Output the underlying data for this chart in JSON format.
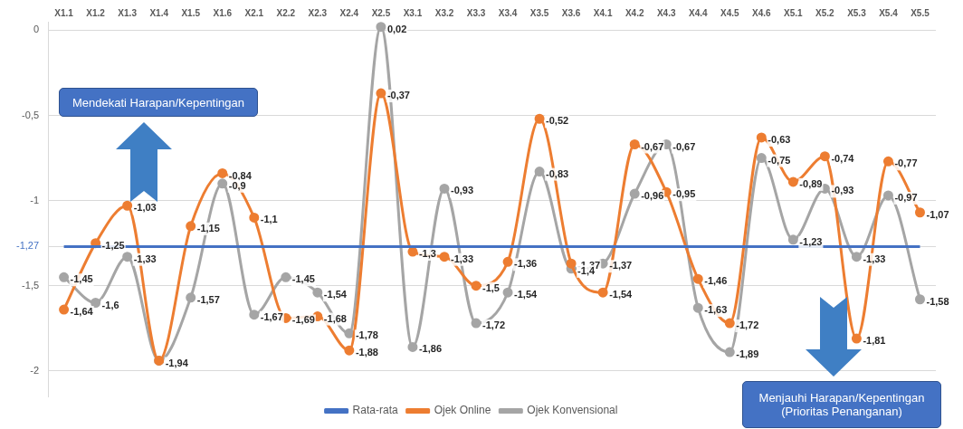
{
  "chart_data": {
    "type": "line",
    "categories": [
      "X1.1",
      "X1.2",
      "X1.3",
      "X1.4",
      "X1.5",
      "X1.6",
      "X2.1",
      "X2.2",
      "X2.3",
      "X2.4",
      "X2.5",
      "X3.1",
      "X3.2",
      "X3.3",
      "X3.4",
      "X3.5",
      "X3.6",
      "X4.1",
      "X4.2",
      "X4.3",
      "X4.4",
      "X4.5",
      "X4.6",
      "X5.1",
      "X5.2",
      "X5.3",
      "X5.4",
      "X5.5"
    ],
    "series": [
      {
        "name": "Rata-rata",
        "color": "#4472c4",
        "marker": "none",
        "values": [
          -1.27,
          -1.27,
          -1.27,
          -1.27,
          -1.27,
          -1.27,
          -1.27,
          -1.27,
          -1.27,
          -1.27,
          -1.27,
          -1.27,
          -1.27,
          -1.27,
          -1.27,
          -1.27,
          -1.27,
          -1.27,
          -1.27,
          -1.27,
          -1.27,
          -1.27,
          -1.27,
          -1.27,
          -1.27,
          -1.27,
          -1.27,
          -1.27
        ]
      },
      {
        "name": "Ojek Online",
        "color": "#ed7d31",
        "marker": "circle",
        "values": [
          -1.64,
          -1.25,
          -1.03,
          -1.94,
          -1.15,
          -0.84,
          -1.1,
          -1.69,
          -1.68,
          -1.88,
          -0.37,
          -1.3,
          -1.33,
          -1.5,
          -1.36,
          -0.52,
          -1.37,
          -1.54,
          -0.67,
          -0.95,
          -1.46,
          -1.72,
          -0.63,
          -0.89,
          -0.74,
          -1.81,
          -0.77,
          -1.07
        ],
        "value_labels": [
          "-1,64",
          "-1,25",
          "-1,03",
          null,
          "-1,15",
          "-0,84",
          "-1,1",
          "-1,69",
          "-1,68",
          "-1,88",
          "-0,37",
          "-1,3",
          "-1,33",
          "-1,5",
          "-1,36",
          "-0,52",
          "-1,37",
          "-1,54",
          "-0,67",
          "-0,95",
          "-1,46",
          "-1,72",
          "-0,63",
          "-0,89",
          "-0,74",
          "-1,81",
          "-0,77",
          "-1,07"
        ]
      },
      {
        "name": "Ojek Konvensional",
        "color": "#a5a5a5",
        "marker": "circle",
        "values": [
          -1.45,
          -1.6,
          -1.33,
          -1.94,
          -1.57,
          -0.9,
          -1.67,
          -1.45,
          -1.54,
          -1.78,
          0.02,
          -1.86,
          -0.93,
          -1.72,
          -1.54,
          -0.83,
          -1.4,
          -1.37,
          -0.96,
          -0.67,
          -1.63,
          -1.89,
          -0.75,
          -1.23,
          -0.93,
          -1.33,
          -0.97,
          -1.58
        ],
        "value_labels": [
          "-1,45",
          "-1,6",
          "-1,33",
          "-1,94",
          "-1,57",
          "-0,9",
          "-1,67",
          "-1,45",
          "-1,54",
          "-1,78",
          "0,02",
          "-1,86",
          "-0,93",
          "-1,72",
          "-1,54",
          "-0,83",
          "-1,4",
          "-1,37",
          "-0,96",
          "-0,67",
          "-1,63",
          "-1,89",
          "-0,75",
          "-1,23",
          "-0,93",
          "-1,33",
          "-0,97",
          "-1,58"
        ]
      }
    ],
    "ylim": [
      -2.15,
      0.05
    ],
    "yticks": [
      0,
      {
        "value": -0.5,
        "label": "-0,5"
      },
      {
        "value": -1,
        "label": "-1"
      },
      {
        "value": -1.27,
        "label": "-1,27"
      },
      {
        "value": -1.5,
        "label": "-1,5"
      },
      {
        "value": -2,
        "label": "-2"
      }
    ],
    "grid": "y",
    "legend": "bottom",
    "annotations": [
      "Mendekati Harapan/Kepentingan",
      "Menjauhi Harapan/Kepentingan\n(Prioritas Penanganan)"
    ]
  }
}
